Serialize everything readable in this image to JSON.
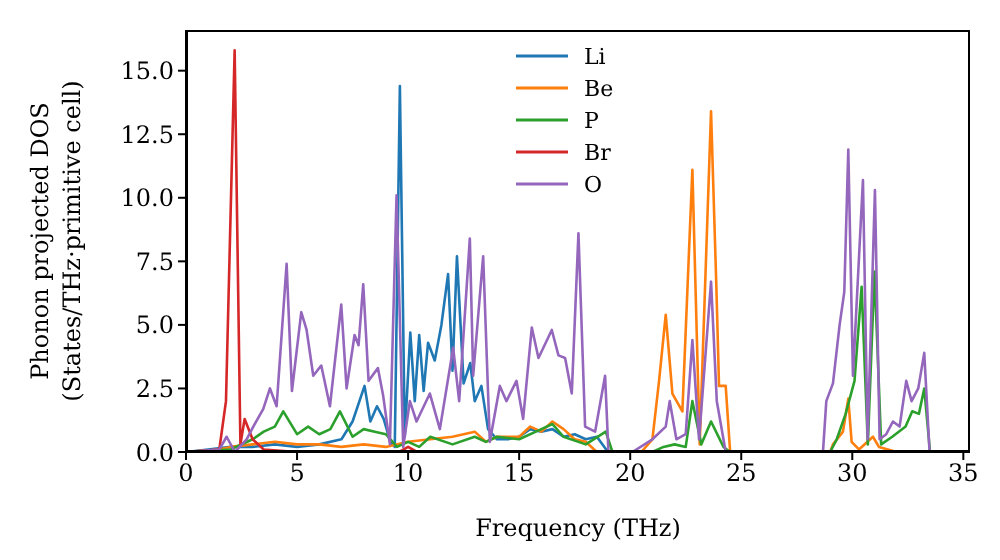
{
  "chart_data": {
    "type": "line",
    "xlabel": "Frequency (THz)",
    "ylabel": "Phonon projected DOS\n(States/THz·primitive cell)",
    "xlim": [
      0,
      35.3
    ],
    "ylim": [
      0,
      16.6
    ],
    "xticks": [
      0,
      5,
      10,
      15,
      20,
      25,
      30,
      35
    ],
    "yticks": [
      {
        "value": 0,
        "label": "0.0"
      },
      {
        "value": 2.5,
        "label": "2.5"
      },
      {
        "value": 5,
        "label": "5.0"
      },
      {
        "value": 7.5,
        "label": "7.5"
      },
      {
        "value": 10,
        "label": "10.0"
      },
      {
        "value": 12.5,
        "label": "12.5"
      },
      {
        "value": 15,
        "label": "15.0"
      }
    ],
    "legend": "top",
    "grid": false,
    "marker": "none",
    "line_style": "solid",
    "series": [
      {
        "name": "Li",
        "color": "#1f77b4",
        "x": [
          0,
          1,
          2,
          3,
          4,
          5,
          6,
          7,
          7.5,
          8.04,
          8.3,
          8.6,
          8.9,
          9.2,
          9.4,
          9.63,
          9.85,
          10.1,
          10.3,
          10.5,
          10.7,
          10.9,
          11.2,
          11.5,
          11.8,
          12.0,
          12.2,
          12.5,
          12.8,
          13.0,
          13.3,
          13.6,
          14.0,
          14.5,
          15,
          15.5,
          16,
          16.5,
          17,
          17.5,
          18,
          18.5,
          19,
          20,
          35
        ],
        "values": [
          0,
          0.1,
          0.2,
          0.2,
          0.3,
          0.2,
          0.3,
          0.5,
          1.2,
          2.6,
          1.2,
          1.8,
          1.3,
          0.4,
          0.2,
          14.4,
          0.6,
          4.7,
          2.0,
          4.6,
          2.4,
          4.3,
          3.6,
          5.0,
          7.0,
          3.2,
          7.7,
          2.7,
          3.5,
          2.0,
          2.6,
          0.9,
          0.5,
          0.5,
          0.6,
          0.9,
          0.8,
          0.9,
          0.6,
          0.7,
          0.5,
          0.6,
          0,
          0,
          0
        ]
      },
      {
        "name": "Be",
        "color": "#ff7f0e",
        "x": [
          0,
          1.5,
          2,
          3,
          4,
          5,
          6,
          7,
          8,
          9,
          10,
          11,
          12,
          13,
          13.5,
          14,
          15,
          15.5,
          16,
          16.5,
          17,
          17.5,
          18,
          18.5,
          20.5,
          21.0,
          21.3,
          21.6,
          21.9,
          22.35,
          22.8,
          23.13,
          23.64,
          23.88,
          24.0,
          24.3,
          24.5,
          29.0,
          29.13,
          29.58,
          29.82,
          29.97,
          30.3,
          30.93,
          31.2,
          32,
          35
        ],
        "values": [
          0,
          0.1,
          0.2,
          0.3,
          0.4,
          0.3,
          0.3,
          0.2,
          0.3,
          0.2,
          0.4,
          0.5,
          0.6,
          0.8,
          0.4,
          0.6,
          0.6,
          1.0,
          0.8,
          1.2,
          0.9,
          0.5,
          0.4,
          0,
          0,
          0.5,
          2.8,
          5.4,
          2.3,
          1.6,
          11.1,
          0.3,
          13.4,
          6.5,
          2.6,
          2.6,
          0,
          0,
          0.3,
          0.8,
          2.1,
          0.4,
          0.1,
          0.6,
          0.2,
          0,
          0
        ]
      },
      {
        "name": "P",
        "color": "#2ca02c",
        "x": [
          0,
          2,
          3,
          3.5,
          4,
          4.38,
          5,
          5.5,
          6,
          6.5,
          6.93,
          7.5,
          8,
          8.5,
          9,
          9.5,
          10,
          10.5,
          11,
          12,
          13,
          13.5,
          14,
          15,
          16,
          16.5,
          17,
          18,
          18.9,
          19.2,
          21,
          21.5,
          22,
          22.5,
          22.8,
          23.2,
          23.64,
          24.2,
          24.5,
          29,
          29.3,
          29.7,
          30.1,
          30.42,
          30.7,
          31.0,
          31.3,
          31.8,
          32.4,
          32.7,
          33.0,
          33.24,
          33.5,
          35
        ],
        "values": [
          0,
          0.1,
          0.5,
          0.8,
          1.0,
          1.6,
          0.7,
          1.0,
          0.7,
          0.9,
          1.6,
          0.6,
          0.9,
          0.8,
          0.7,
          0.2,
          0.4,
          0.2,
          0.6,
          0.3,
          0.6,
          0.4,
          0.6,
          0.5,
          0.9,
          1.1,
          0.6,
          0.3,
          0.8,
          0,
          0,
          0.2,
          0.3,
          0.2,
          2.0,
          0.3,
          1.2,
          0.2,
          0,
          0,
          0.5,
          1.5,
          2.8,
          6.5,
          0.3,
          7.1,
          0.3,
          0.6,
          1.0,
          1.6,
          1.5,
          2.5,
          0,
          0
        ]
      },
      {
        "name": "Br",
        "color": "#d62728",
        "x": [
          0,
          1.5,
          1.8,
          2.19,
          2.45,
          2.64,
          3.0,
          3.5,
          5,
          9.6,
          10,
          10.4,
          35
        ],
        "values": [
          0,
          0.1,
          2.0,
          15.8,
          0.3,
          1.3,
          0.5,
          0.1,
          0,
          0,
          0.2,
          0,
          0
        ]
      },
      {
        "name": "O",
        "color": "#9467bd",
        "x": [
          0,
          1.5,
          1.83,
          2.2,
          2.73,
          3.03,
          3.48,
          3.78,
          4.08,
          4.53,
          4.77,
          5.19,
          5.43,
          5.73,
          6.09,
          6.48,
          6.99,
          7.23,
          7.59,
          7.77,
          7.98,
          8.22,
          8.64,
          8.88,
          9.18,
          9.48,
          9.78,
          10.08,
          10.38,
          10.98,
          11.43,
          12.03,
          12.3,
          12.78,
          12.93,
          13.38,
          13.68,
          14.13,
          14.43,
          14.88,
          15.18,
          15.57,
          15.87,
          16.47,
          16.77,
          17.07,
          17.37,
          17.67,
          17.97,
          18.42,
          18.87,
          19.02,
          20.1,
          21.0,
          21.6,
          21.78,
          22.08,
          22.5,
          22.8,
          23.1,
          23.64,
          23.9,
          24.3,
          28.68,
          28.83,
          29.13,
          29.43,
          29.64,
          29.82,
          30.03,
          30.48,
          30.69,
          31.02,
          31.23,
          31.53,
          31.83,
          32.13,
          32.43,
          32.67,
          32.97,
          33.24,
          33.48
        ],
        "values": [
          0,
          0.1,
          0.6,
          0,
          0.5,
          1.0,
          1.7,
          2.5,
          1.8,
          7.4,
          2.4,
          5.5,
          4.8,
          3.0,
          3.4,
          1.8,
          5.8,
          2.5,
          4.6,
          4.2,
          6.6,
          2.8,
          3.3,
          2.2,
          0.3,
          10.1,
          0.2,
          2.0,
          1.2,
          2.3,
          0.9,
          4.1,
          2.0,
          8.4,
          3.0,
          7.7,
          0.4,
          2.6,
          2.0,
          2.8,
          1.3,
          4.9,
          3.7,
          4.8,
          3.8,
          3.7,
          2.3,
          8.6,
          1.0,
          0.8,
          3.0,
          0,
          0,
          0.5,
          1.0,
          2.0,
          0.5,
          0.7,
          4.4,
          0.5,
          6.7,
          2.0,
          0,
          0,
          2.0,
          2.7,
          5.0,
          6.3,
          11.9,
          3.0,
          10.7,
          0.5,
          10.3,
          0.5,
          0.7,
          1.2,
          1.0,
          2.8,
          2.0,
          2.5,
          3.9,
          0
        ]
      }
    ]
  }
}
